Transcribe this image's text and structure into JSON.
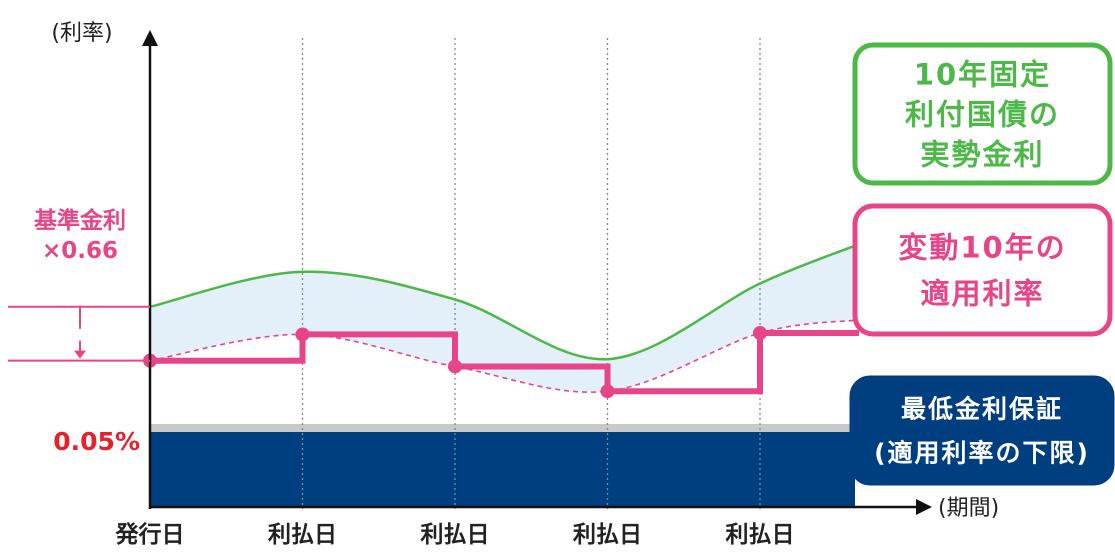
{
  "chart_data": {
    "type": "line",
    "ylabel": "(利率)",
    "xlabel": "(期間)",
    "categories": [
      "発行日",
      "利払日",
      "利払日",
      "利払日",
      "利払日"
    ],
    "floor": {
      "label": "0.05%",
      "value": 0.05
    },
    "base_rate_note": {
      "line1": "基準金利",
      "line2": "×0.66"
    },
    "series": [
      {
        "name": "10年固定利付国債の実勢金利",
        "type": "line",
        "style": "solid",
        "color": "#4cb848",
        "x": [
          0,
          1.0,
          2.0,
          3.0,
          4.0,
          4.65
        ],
        "y": [
          0.91,
          1.15,
          0.96,
          0.55,
          1.07,
          1.34
        ]
      },
      {
        "name": "変動10年の適用利率",
        "type": "line",
        "style": "dashed",
        "color": "#e84589",
        "x": [
          0,
          1.0,
          2.0,
          3.0,
          4.0,
          4.65
        ],
        "y": [
          0.54,
          0.72,
          0.5,
          0.33,
          0.73,
          0.82
        ]
      },
      {
        "name": "変動10年の適用利率",
        "type": "step",
        "style": "solid",
        "color": "#e84589",
        "x": [
          0,
          1,
          2,
          3,
          4,
          4.65
        ],
        "y": [
          0.54,
          0.72,
          0.5,
          0.33,
          0.73,
          0.73
        ]
      },
      {
        "name": "最低金利保証(適用利率の下限)",
        "type": "area",
        "color": "#003f7f",
        "y": 0.05
      }
    ],
    "callouts": {
      "green": [
        "10年固定",
        "利付国債の",
        "実勢金利"
      ],
      "pink": [
        "変動10年の",
        "適用利率"
      ],
      "navy": [
        "最低金利保証",
        "(適用利率の下限)"
      ]
    },
    "colors": {
      "green": "#4cb848",
      "pink": "#e84589",
      "navy": "#003f7f",
      "fill": "#e3f0f9",
      "red_label": "#e8202a",
      "grid": "#888888"
    },
    "grid": "vertical-dotted"
  }
}
